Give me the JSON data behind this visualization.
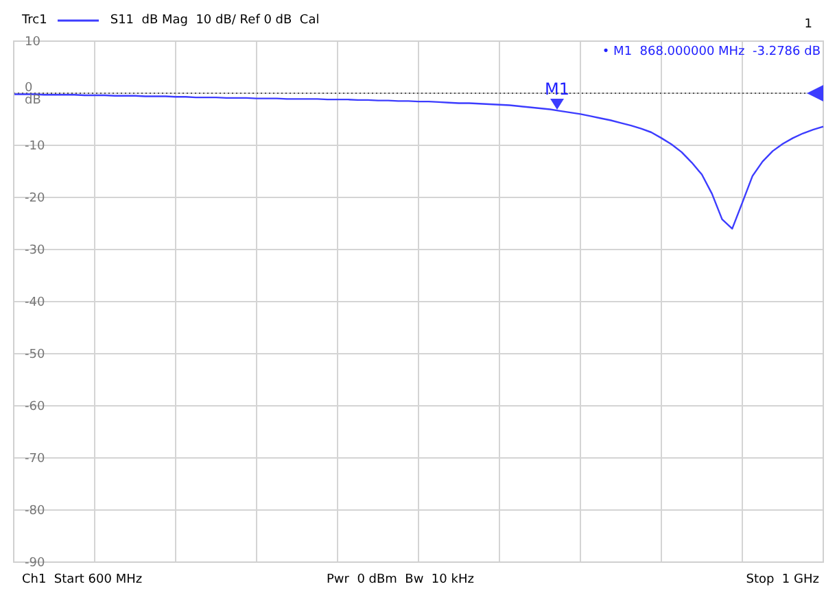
{
  "chart_data": {
    "type": "line",
    "legend_title": "Trc1",
    "legend": "top left",
    "grid": true,
    "tick_labels": "y",
    "marker": "none",
    "line_style": "solid",
    "categories": [
      null,
      null,
      null,
      null,
      null,
      null,
      null,
      null,
      null,
      null,
      null,
      null,
      null,
      null,
      null,
      null,
      null,
      null,
      null,
      null,
      null,
      null,
      null,
      null,
      null,
      null,
      null,
      null,
      null,
      null,
      null,
      null,
      null,
      null,
      null,
      null,
      null,
      null,
      null,
      null,
      null,
      null,
      null,
      null,
      null,
      null,
      null,
      null,
      null,
      null,
      null,
      null,
      null,
      null,
      null,
      null,
      null,
      null,
      null,
      null,
      null,
      null,
      null,
      null,
      null,
      null,
      null,
      null,
      null,
      null,
      null,
      null,
      null,
      null,
      null,
      null,
      null,
      null,
      null,
      null,
      null
    ],
    "series": [
      {
        "name": "S11  dB Mag  10 dB/ Ref 0 dB  Cal",
        "color": "#3c3cff",
        "values": [
          -0.2,
          -0.2,
          -0.2,
          -0.3,
          -0.3,
          -0.3,
          -0.3,
          -0.4,
          -0.4,
          -0.4,
          -0.5,
          -0.5,
          -0.5,
          -0.6,
          -0.6,
          -0.6,
          -0.7,
          -0.7,
          -0.8,
          -0.8,
          -0.8,
          -0.9,
          -0.9,
          -0.9,
          -1.0,
          -1.0,
          -1.0,
          -1.1,
          -1.1,
          -1.1,
          -1.1,
          -1.2,
          -1.2,
          -1.2,
          -1.3,
          -1.3,
          -1.4,
          -1.4,
          -1.5,
          -1.5,
          -1.6,
          -1.6,
          -1.7,
          -1.8,
          -1.9,
          -1.9,
          -2.0,
          -2.1,
          -2.2,
          -2.3,
          -2.5,
          -2.7,
          -2.9,
          -3.1,
          -3.4,
          -3.7,
          -4.0,
          -4.4,
          -4.8,
          -5.2,
          -5.7,
          -6.2,
          -6.8,
          -7.5,
          -8.6,
          -9.8,
          -11.3,
          -13.3,
          -15.6,
          -19.3,
          -24.2,
          -26.0,
          -21.0,
          -15.9,
          -13.1,
          -11.1,
          -9.7,
          -8.6,
          -7.7,
          -7.0,
          -6.4
        ]
      }
    ],
    "ylim": [
      -90,
      10
    ],
    "yticks": [
      10,
      {
        "value": 0,
        "label": "0 dB"
      },
      -10,
      -20,
      -30,
      -40,
      -50,
      -60,
      -70,
      -80,
      -90
    ],
    "ref_lines": [
      {
        "axis": "y",
        "value": 0,
        "color": "#555555",
        "line_style": "dotted"
      }
    ],
    "annotations": [
      "1",
      "• M1  868.000000 MHz  -3.2786 dB",
      "M1",
      "Ch1  Start 600 MHz",
      "Pwr  0 dBm  Bw  10 kHz",
      "Stop  1 GHz"
    ]
  }
}
